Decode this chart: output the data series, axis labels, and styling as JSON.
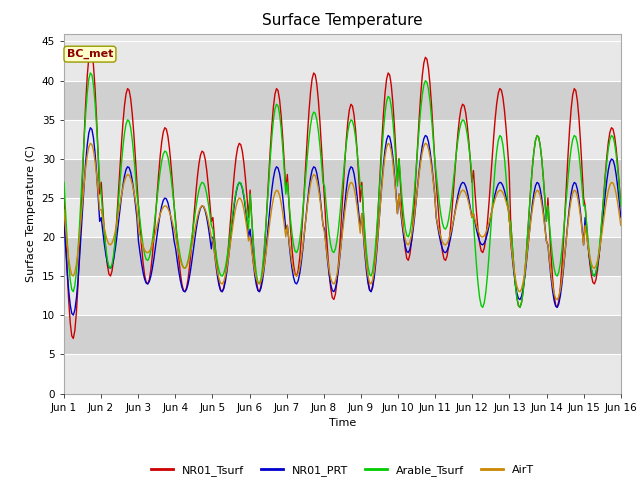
{
  "title": "Surface Temperature",
  "ylabel": "Surface Temperature (C)",
  "xlabel": "Time",
  "ylim": [
    0,
    46
  ],
  "yticks": [
    0,
    5,
    10,
    15,
    20,
    25,
    30,
    35,
    40,
    45
  ],
  "colors": {
    "NR01_Tsurf": "#cc0000",
    "NR01_PRT": "#0000cc",
    "Arable_Tsurf": "#00cc00",
    "AirT": "#cc8800"
  },
  "legend_labels": [
    "NR01_Tsurf",
    "NR01_PRT",
    "Arable_Tsurf",
    "AirT"
  ],
  "annotation_text": "BC_met",
  "plot_bg": "#e8e8e8",
  "band_light": "#e8e8e8",
  "band_dark": "#d0d0d0",
  "title_fontsize": 11,
  "label_fontsize": 8,
  "tick_fontsize": 7.5,
  "n_days": 15,
  "daily_peaks_nro1": [
    44,
    39,
    34,
    31,
    32,
    39,
    41,
    37,
    41,
    43,
    37,
    39,
    33,
    39,
    34
  ],
  "daily_mins_nro1": [
    7,
    15,
    14,
    13,
    13,
    13,
    15,
    12,
    13,
    17,
    17,
    18,
    11,
    11,
    14
  ],
  "daily_peaks_prt": [
    34,
    29,
    25,
    24,
    27,
    29,
    29,
    29,
    33,
    33,
    27,
    27,
    27,
    27,
    30
  ],
  "daily_mins_prt": [
    10,
    16,
    14,
    13,
    13,
    13,
    14,
    13,
    13,
    18,
    18,
    19,
    12,
    11,
    15
  ],
  "daily_peaks_arab": [
    41,
    35,
    31,
    27,
    27,
    37,
    36,
    35,
    38,
    40,
    35,
    33,
    33,
    33,
    33
  ],
  "daily_mins_arab": [
    13,
    16,
    17,
    16,
    15,
    14,
    18,
    18,
    15,
    20,
    21,
    11,
    11,
    15,
    15
  ],
  "daily_peaks_air": [
    32,
    28,
    24,
    24,
    25,
    26,
    28,
    27,
    32,
    32,
    26,
    26,
    26,
    26,
    27
  ],
  "daily_mins_air": [
    15,
    19,
    18,
    16,
    14,
    14,
    15,
    14,
    14,
    19,
    19,
    20,
    13,
    12,
    16
  ]
}
